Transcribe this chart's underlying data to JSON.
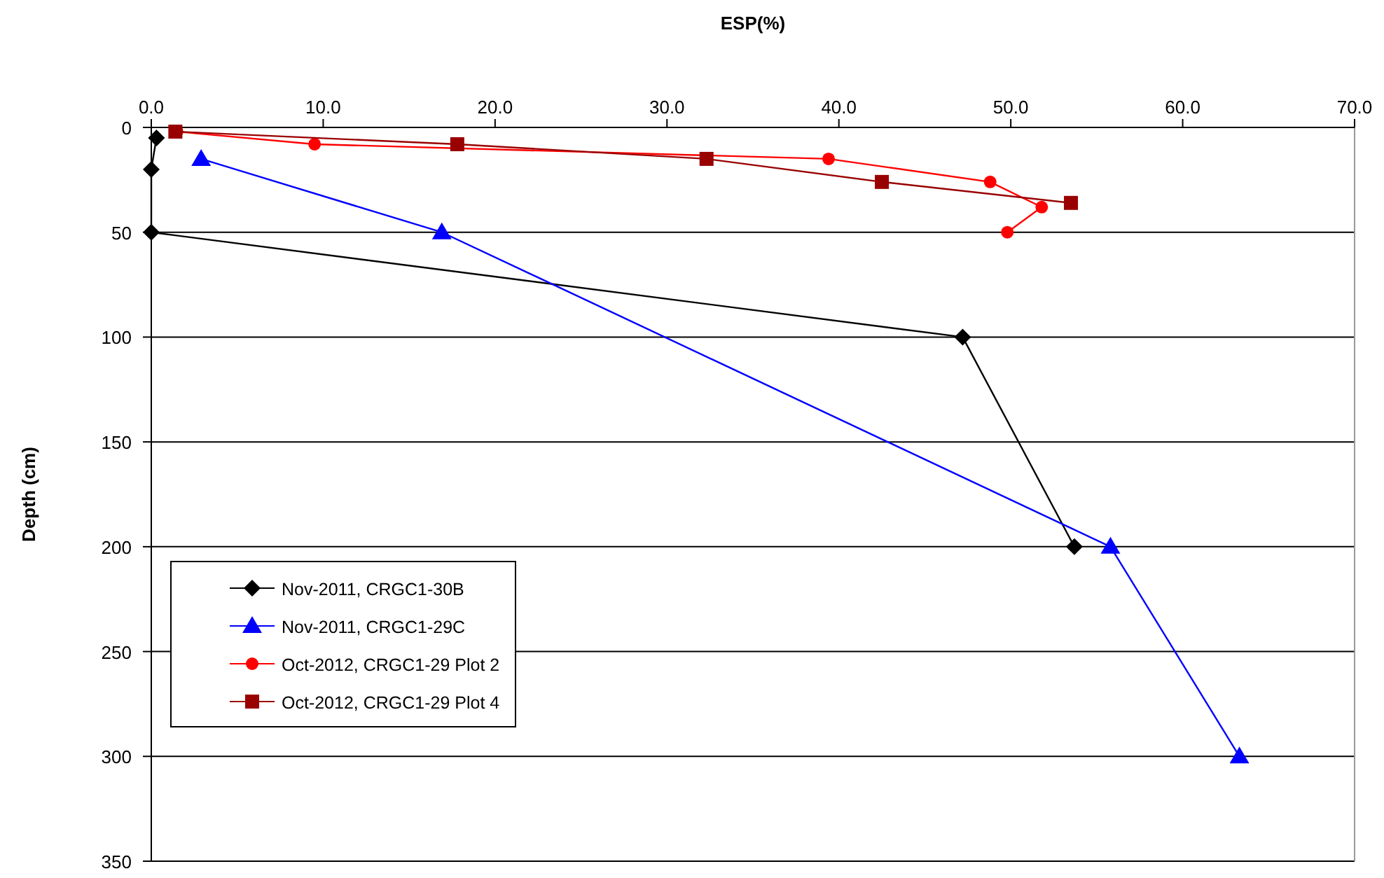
{
  "chart_data": {
    "type": "line",
    "xlabel": "ESP(%)",
    "ylabel": "Depth (cm)",
    "xlim": [
      0,
      70
    ],
    "xticks": [
      {
        "value": 0,
        "label": "0.0"
      },
      {
        "value": 10,
        "label": "10.0"
      },
      {
        "value": 20,
        "label": "20.0"
      },
      {
        "value": 30,
        "label": "30.0"
      },
      {
        "value": 40,
        "label": "40.0"
      },
      {
        "value": 50,
        "label": "50.0"
      },
      {
        "value": 60,
        "label": "60.0"
      },
      {
        "value": 70,
        "label": "70.0"
      }
    ],
    "ylim": [
      350,
      0
    ],
    "yticks": [
      0,
      50,
      100,
      150,
      200,
      250,
      300,
      350
    ],
    "grid": "y",
    "legend": "bottom left",
    "series": [
      {
        "name": "Nov-2011, CRGC1-30B",
        "color": "#000000",
        "marker": "diamond",
        "x": [
          0.3,
          0,
          0,
          47.2,
          53.7
        ],
        "values": [
          5,
          20,
          50,
          100,
          200
        ]
      },
      {
        "name": "Nov-2011, CRGC1-29C",
        "color": "#0000ff",
        "marker": "triangle",
        "x": [
          2.9,
          16.9,
          55.8,
          63.3
        ],
        "values": [
          15,
          50,
          200,
          300
        ]
      },
      {
        "name": "Oct-2012, CRGC1-29 Plot 2",
        "color": "#ff0000",
        "marker": "circle",
        "x": [
          1.5,
          9.5,
          39.4,
          48.8,
          51.8,
          49.8
        ],
        "values": [
          2,
          8,
          15,
          26,
          38,
          50
        ]
      },
      {
        "name": "Oct-2012, CRGC1-29 Plot 4",
        "color": "#990000",
        "marker": "square",
        "x": [
          1.4,
          17.8,
          32.3,
          42.5,
          53.5
        ],
        "values": [
          2,
          8,
          15,
          26,
          36
        ]
      }
    ]
  }
}
